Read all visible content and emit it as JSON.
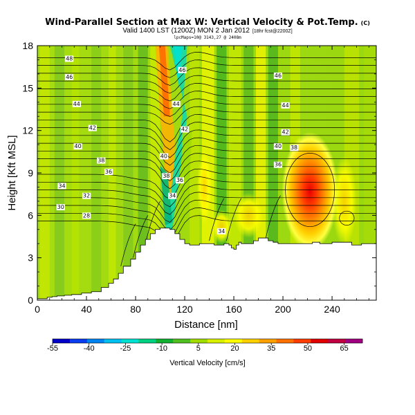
{
  "chart_data": {
    "type": "heatmap",
    "title": "Wind-Parallel Section at Max W: Vertical Velocity & Pot.Temp.",
    "title_mark": "(C)",
    "subtitle_valid": "Valid 1400 LST (1200Z) MON 2 Jan 2012",
    "subtitle_run": "[18hr fcst@2200Z]",
    "subtitle_loc": "lpcMaps=10@ 3143,27 @ 2408m",
    "xlabel": "Distance [nm]",
    "ylabel": "Height [Kft MSL]",
    "xlim": [
      0,
      276
    ],
    "ylim": [
      0,
      18
    ],
    "x_ticks": [
      "0",
      "40",
      "80",
      "120",
      "160",
      "200",
      "240"
    ],
    "x_tick_values": [
      0,
      40,
      80,
      120,
      160,
      200,
      240
    ],
    "y_ticks": [
      "0",
      "3",
      "6",
      "9",
      "12",
      "15",
      "18"
    ],
    "y_tick_values": [
      0,
      3,
      6,
      9,
      12,
      15,
      18
    ],
    "colorbar": {
      "label": "Vertical Velocity [cm/s]",
      "tick_labels": [
        "-55",
        "-40",
        "-25",
        "-10",
        "5",
        "20",
        "35",
        "50",
        "65"
      ],
      "range": [
        -55,
        70
      ],
      "colors": [
        "#0000c8",
        "#0a3cf0",
        "#0082f0",
        "#00c0f0",
        "#00e0d0",
        "#00d080",
        "#10b030",
        "#50c020",
        "#a0dc00",
        "#d8f000",
        "#ffff00",
        "#ffd000",
        "#ffa000",
        "#ff7000",
        "#ff3c00",
        "#e00000",
        "#c00040",
        "#a00080"
      ]
    },
    "velocity_features": [
      {
        "name": "strong updraft",
        "x": 222,
        "y": 7.7,
        "value": 55
      },
      {
        "name": "mountain-wave updraft",
        "x": 103,
        "y": 15.5,
        "value": 35
      },
      {
        "name": "wave downdraft",
        "x": 114,
        "y": 15.8,
        "value": -20
      },
      {
        "name": "lee downdraft",
        "x": 107,
        "y": 6.5,
        "value": -25
      },
      {
        "name": "updraft band",
        "x": 140,
        "y": 12.0,
        "value": 18
      },
      {
        "name": "updraft band",
        "x": 180,
        "y": 13.5,
        "value": 15
      }
    ],
    "contour_labels": [
      {
        "text": "48",
        "x": 26,
        "y": 17.1
      },
      {
        "text": "46",
        "x": 26,
        "y": 15.8
      },
      {
        "text": "44",
        "x": 32,
        "y": 13.9
      },
      {
        "text": "42",
        "x": 45,
        "y": 12.2
      },
      {
        "text": "40",
        "x": 33,
        "y": 10.9
      },
      {
        "text": "38",
        "x": 52,
        "y": 9.9
      },
      {
        "text": "36",
        "x": 58,
        "y": 9.1
      },
      {
        "text": "34",
        "x": 20,
        "y": 8.1
      },
      {
        "text": "32",
        "x": 40,
        "y": 7.4
      },
      {
        "text": "30",
        "x": 19,
        "y": 6.6
      },
      {
        "text": "28",
        "x": 40,
        "y": 6.0
      },
      {
        "text": "46",
        "x": 118,
        "y": 16.3
      },
      {
        "text": "44",
        "x": 113,
        "y": 13.9
      },
      {
        "text": "42",
        "x": 120,
        "y": 12.1
      },
      {
        "text": "40",
        "x": 103,
        "y": 10.2
      },
      {
        "text": "38",
        "x": 105,
        "y": 8.8
      },
      {
        "text": "36",
        "x": 116,
        "y": 8.5
      },
      {
        "text": "34",
        "x": 110,
        "y": 7.4
      },
      {
        "text": "34",
        "x": 150,
        "y": 4.9
      },
      {
        "text": "46",
        "x": 196,
        "y": 15.9
      },
      {
        "text": "44",
        "x": 202,
        "y": 13.8
      },
      {
        "text": "42",
        "x": 202,
        "y": 11.9
      },
      {
        "text": "40",
        "x": 196,
        "y": 10.9
      },
      {
        "text": "38",
        "x": 209,
        "y": 10.8
      },
      {
        "text": "36",
        "x": 196,
        "y": 9.6
      }
    ],
    "terrain_profile": {
      "x": [
        0,
        8,
        12,
        16,
        22,
        28,
        36,
        44,
        52,
        58,
        62,
        66,
        70,
        76,
        80,
        84,
        88,
        92,
        96,
        100,
        104,
        108,
        112,
        116,
        120,
        124,
        128,
        132,
        136,
        140,
        144,
        148,
        152,
        156,
        158,
        160,
        162,
        164,
        166,
        170,
        176,
        180,
        184,
        188,
        192,
        196,
        200,
        206,
        212,
        218,
        224,
        230,
        236,
        240,
        248,
        256,
        264,
        270,
        276
      ],
      "y": [
        0.1,
        0.2,
        0.25,
        0.3,
        0.35,
        0.4,
        0.5,
        0.6,
        0.9,
        1.2,
        1.5,
        1.9,
        2.4,
        2.9,
        3.4,
        3.9,
        4.3,
        4.7,
        5.0,
        5.1,
        5.1,
        5.0,
        4.7,
        4.3,
        4.0,
        3.9,
        3.9,
        4.0,
        4.0,
        4.0,
        3.9,
        3.9,
        4.0,
        3.9,
        3.7,
        3.6,
        3.9,
        4.1,
        4.0,
        4.0,
        4.2,
        4.4,
        4.4,
        4.2,
        4.1,
        4.0,
        4.0,
        4.0,
        4.0,
        4.0,
        4.1,
        4.0,
        4.0,
        4.1,
        4.1,
        3.9,
        4.0,
        4.0,
        4.0
      ]
    }
  }
}
